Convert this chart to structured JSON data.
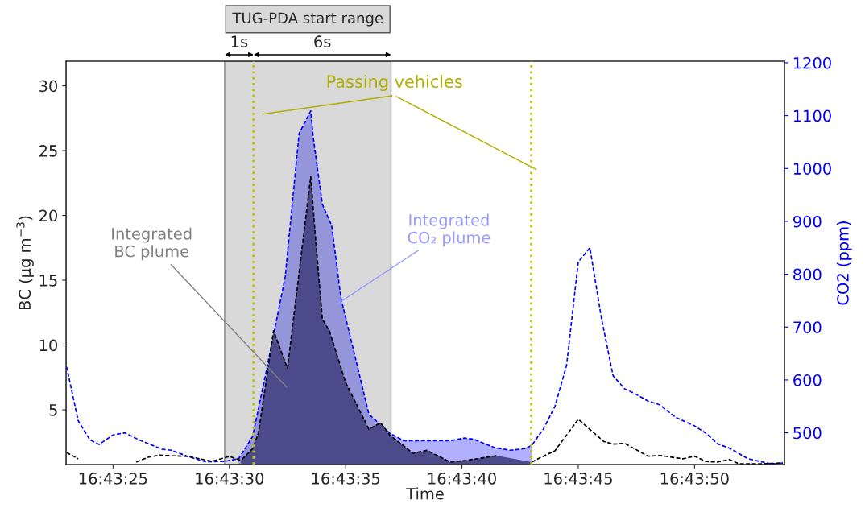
{
  "chart_data": {
    "type": "line",
    "xlabel": "Time",
    "ylabel": "BC (µg m$^{−3}$)",
    "y2label": "CO2 (ppm)",
    "xlim": [
      16.72305,
      16.73163
    ],
    "ylim": [
      0.78,
      31.9
    ],
    "y2lim": [
      440,
      1203
    ],
    "xticks": [
      {
        "value": 16.723611,
        "label": "16:43:25"
      },
      {
        "value": 16.725,
        "label": "16:43:30"
      },
      {
        "value": 16.726389,
        "label": "16:43:35"
      },
      {
        "value": 16.727778,
        "label": "16:43:40"
      },
      {
        "value": 16.729167,
        "label": "16:43:45"
      },
      {
        "value": 16.730556,
        "label": "16:43:50"
      }
    ],
    "yticks": [
      5,
      10,
      15,
      20,
      25,
      30
    ],
    "y2ticks": [
      500,
      600,
      700,
      800,
      900,
      1000,
      1100,
      1200
    ],
    "line_style": "dashed",
    "series": [
      {
        "type": "area",
        "axis": "y2",
        "color": "#b0b0ff",
        "x": [
          16.725111,
          16.725278,
          16.725444,
          16.725667,
          16.725833,
          16.725972,
          16.726,
          16.726111,
          16.726222,
          16.726333,
          16.726667,
          16.726917,
          16.727083,
          16.727333,
          16.727639,
          16.727806,
          16.727917,
          16.728167,
          16.728361,
          16.728528,
          16.728611
        ],
        "values": [
          451,
          493,
          619,
          795,
          1066,
          1109,
          1061,
          932,
          892,
          755,
          535,
          499,
          485,
          485,
          485,
          490,
          488,
          472,
          467,
          470,
          476
        ]
      },
      {
        "axis": "y2",
        "color": "#0000ff",
        "x": [
          16.723056,
          16.723194,
          16.723333,
          16.723444,
          16.723611,
          16.72375,
          16.723917,
          16.724194,
          16.724306,
          16.724528,
          16.724722,
          16.724944,
          16.725111,
          16.725278,
          16.725444,
          16.725667,
          16.725833,
          16.725972,
          16.726,
          16.726111,
          16.726222,
          16.726333,
          16.726667,
          16.726917,
          16.727083,
          16.727333,
          16.727639,
          16.727806,
          16.727917,
          16.728167,
          16.728361,
          16.728528,
          16.728611,
          16.72875,
          16.728889,
          16.729028,
          16.729167,
          16.729306,
          16.729444,
          16.729583,
          16.729722,
          16.729833,
          16.73,
          16.730139,
          16.730333,
          16.730556,
          16.730694,
          16.730833,
          16.730972,
          16.731194,
          16.731472,
          16.731611
        ],
        "values": [
          625,
          523,
          487,
          478,
          496,
          500,
          487,
          469,
          467,
          454,
          445,
          446,
          451,
          493,
          619,
          795,
          1066,
          1109,
          1061,
          932,
          892,
          755,
          535,
          499,
          485,
          485,
          485,
          490,
          488,
          472,
          467,
          470,
          476,
          507,
          550,
          628,
          823,
          850,
          717,
          608,
          583,
          575,
          560,
          553,
          529,
          513,
          499,
          479,
          471,
          451,
          441,
          443
        ]
      },
      {
        "type": "area",
        "axis": "y",
        "color": "#4b4b8b",
        "x": [
          16.725139,
          16.725278,
          16.725347,
          16.725528,
          16.725694,
          16.725972,
          16.726027,
          16.726111,
          16.726194,
          16.726389,
          16.726667,
          16.726806,
          16.726917,
          16.727194,
          16.727361,
          16.727639,
          16.727833,
          16.728194,
          16.728611
        ],
        "values": [
          1.1,
          2.0,
          3.2,
          11.1,
          8.2,
          23.0,
          18.4,
          12.0,
          11.1,
          7.1,
          3.5,
          4.0,
          3.05,
          1.65,
          1.87,
          0.97,
          1.1,
          1.46,
          0.97
        ]
      },
      {
        "axis": "y",
        "color": "#000000",
        "x": [
          16.723056,
          16.723194,
          16.723333,
          16.723611,
          16.723889,
          16.724028,
          16.724167,
          16.724513,
          16.724791,
          16.725,
          16.725139,
          16.725278,
          16.725347,
          16.725528,
          16.725694,
          16.725972,
          16.726027,
          16.726111,
          16.726194,
          16.726389,
          16.726667,
          16.726806,
          16.726917,
          16.727194,
          16.727361,
          16.727639,
          16.727833,
          16.728194,
          16.728444,
          16.728611,
          16.72875,
          16.728889,
          16.729167,
          16.729472,
          16.729583,
          16.729722,
          16.73,
          16.730139,
          16.730417,
          16.730556,
          16.730694,
          16.730833,
          16.730972,
          16.731083,
          16.731361,
          16.731611
        ],
        "values": [
          1.71,
          1.22,
          null,
          null,
          0.97,
          1.34,
          1.5,
          1.4,
          1.03,
          1.4,
          1.1,
          2.0,
          3.2,
          11.1,
          8.2,
          23.0,
          18.4,
          12.0,
          11.1,
          7.1,
          3.5,
          4.0,
          3.05,
          1.65,
          1.87,
          0.97,
          1.1,
          1.46,
          null,
          0.97,
          1.42,
          1.84,
          4.27,
          2.56,
          2.35,
          2.41,
          1.42,
          1.48,
          1.22,
          1.42,
          1.01,
          0.97,
          1.17,
          0.84,
          0.84,
          0.9
        ]
      }
    ],
    "bands": [
      {
        "axis": "x",
        "from": 16.724944,
        "to": 16.726931,
        "label": "TUG-PDA start range",
        "color": "#d9d9d9"
      }
    ],
    "ref_lines": [
      {
        "axis": "x",
        "value": 16.725289,
        "color": "#bfbf00",
        "line_style": "dotted"
      },
      {
        "axis": "x",
        "value": 16.728606,
        "color": "#bfbf00",
        "line_style": "dotted"
      }
    ],
    "annotations": [
      "Passing vehicles",
      "1s",
      "6s",
      "Integrated\nBC plume",
      "Integrated\nCO₂ plume"
    ]
  }
}
